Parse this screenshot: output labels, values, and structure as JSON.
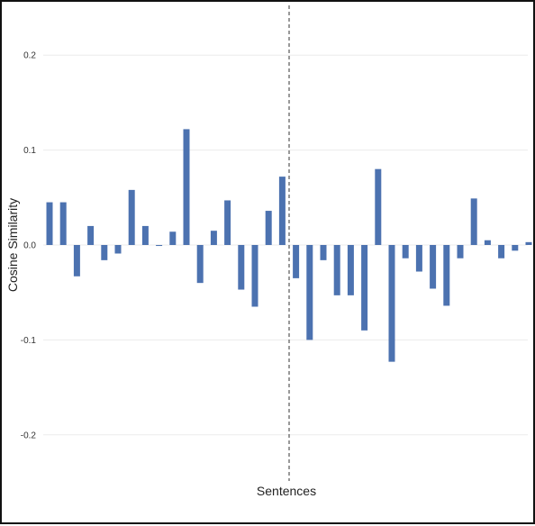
{
  "chart_data": {
    "type": "bar",
    "xlabel": "Sentences",
    "ylabel": "Cosine Similarity",
    "ylim": [
      -0.25,
      0.25
    ],
    "yticks": [
      {
        "value": 0.2,
        "label": "0.2"
      },
      {
        "value": 0.1,
        "label": "0.1"
      },
      {
        "value": 0.0,
        "label": "0.0"
      },
      {
        "value": -0.1,
        "label": "-0.1"
      },
      {
        "value": -0.2,
        "label": "-0.2"
      }
    ],
    "grid": true,
    "bar_color": "#4c72b0",
    "divider_after_index": 17,
    "values": [
      0.045,
      0.045,
      -0.033,
      0.02,
      -0.016,
      -0.009,
      0.058,
      0.02,
      -0.001,
      0.014,
      0.122,
      -0.04,
      0.015,
      0.047,
      -0.047,
      -0.065,
      0.036,
      0.072,
      -0.035,
      -0.1,
      -0.016,
      -0.053,
      -0.053,
      -0.09,
      0.08,
      -0.123,
      -0.014,
      -0.028,
      -0.046,
      -0.064,
      -0.014,
      0.049,
      0.005,
      -0.014,
      -0.006,
      0.003
    ]
  }
}
